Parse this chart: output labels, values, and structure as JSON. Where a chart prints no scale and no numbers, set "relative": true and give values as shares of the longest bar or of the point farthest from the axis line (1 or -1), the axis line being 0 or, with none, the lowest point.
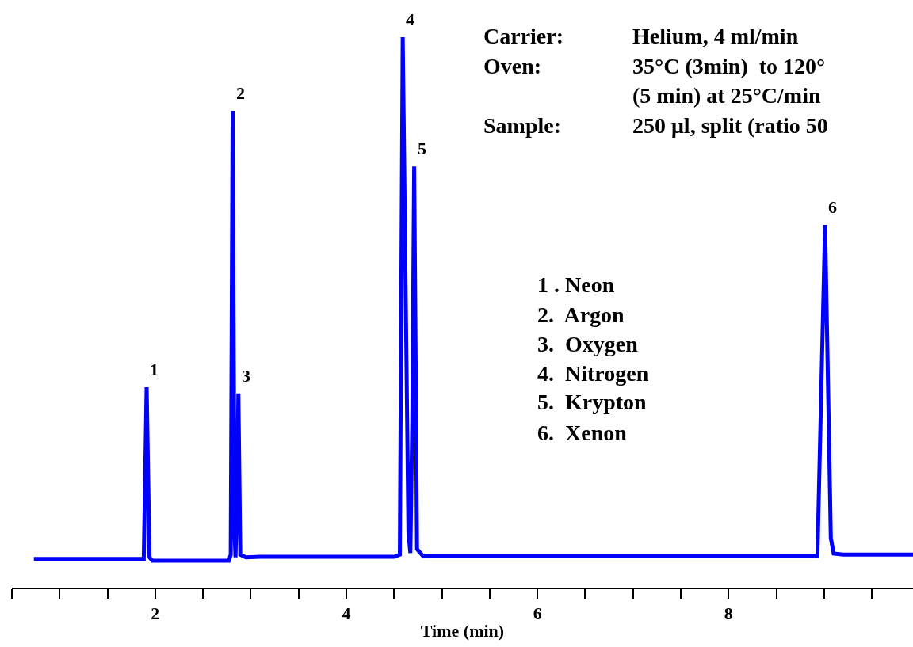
{
  "chart_data": {
    "type": "line",
    "relative": true,
    "xlabel": "Time (min)",
    "x": [
      0.73,
      1.88,
      1.91,
      1.94,
      1.97,
      2.77,
      2.79,
      2.81,
      2.83,
      2.84,
      2.86,
      2.87,
      2.89,
      2.95,
      3.1,
      4.5,
      4.56,
      4.59,
      4.65,
      4.67,
      4.69,
      4.71,
      4.74,
      4.8,
      8.93,
      9.01,
      9.07,
      9.1,
      9.2,
      9.93
    ],
    "series": [
      {
        "color": "#0000ff",
        "values": [
          0.052,
          0.052,
          0.364,
          0.055,
          0.049,
          0.049,
          0.06,
          0.866,
          0.1,
          0.055,
          0.2,
          0.353,
          0.06,
          0.055,
          0.056,
          0.056,
          0.06,
          1.0,
          0.1,
          0.063,
          0.3,
          0.765,
          0.07,
          0.058,
          0.058,
          0.659,
          0.09,
          0.062,
          0.06,
          0.06
        ]
      }
    ],
    "xlim": [
      0.5,
      9.93
    ],
    "xticks": [
      {
        "value": 0.5,
        "label": null
      },
      {
        "value": 1,
        "label": null
      },
      {
        "value": 1.5,
        "label": null
      },
      2,
      {
        "value": 2.5,
        "label": null
      },
      {
        "value": 3,
        "label": null
      },
      {
        "value": 3.5,
        "label": null
      },
      4,
      {
        "value": 4.5,
        "label": null
      },
      {
        "value": 5,
        "label": null
      },
      {
        "value": 5.5,
        "label": null
      },
      6,
      {
        "value": 6.5,
        "label": null
      },
      {
        "value": 7,
        "label": null
      },
      {
        "value": 7.5,
        "label": null
      },
      8,
      {
        "value": 8.5,
        "label": null
      },
      {
        "value": 9,
        "label": null
      },
      {
        "value": 9.5,
        "label": null
      }
    ],
    "grid": false,
    "marker": "none",
    "line_style": "solid",
    "annotations": [
      {
        "text": "1",
        "x": 1.91,
        "y": 0.364
      },
      {
        "text": "2",
        "x": 2.81,
        "y": 0.866
      },
      {
        "text": "3",
        "x": 2.87,
        "y": 0.353
      },
      {
        "text": "4",
        "x": 4.59,
        "y": 1.0
      },
      {
        "text": "5",
        "x": 4.71,
        "y": 0.765
      },
      {
        "text": "6",
        "x": 9.01,
        "y": 0.659
      },
      "Carrier:",
      "Helium, 4 ml/min",
      "Oven:",
      "35°C (3min)  to 120°",
      "(5 min) at 25°C/min",
      "Sample:",
      "250 μl, split (ratio 50",
      "1 . Neon",
      "2.  Argon",
      "3.  Oxygen",
      "4.  Nitrogen",
      "5.  Krypton",
      "6.  Xenon"
    ]
  }
}
